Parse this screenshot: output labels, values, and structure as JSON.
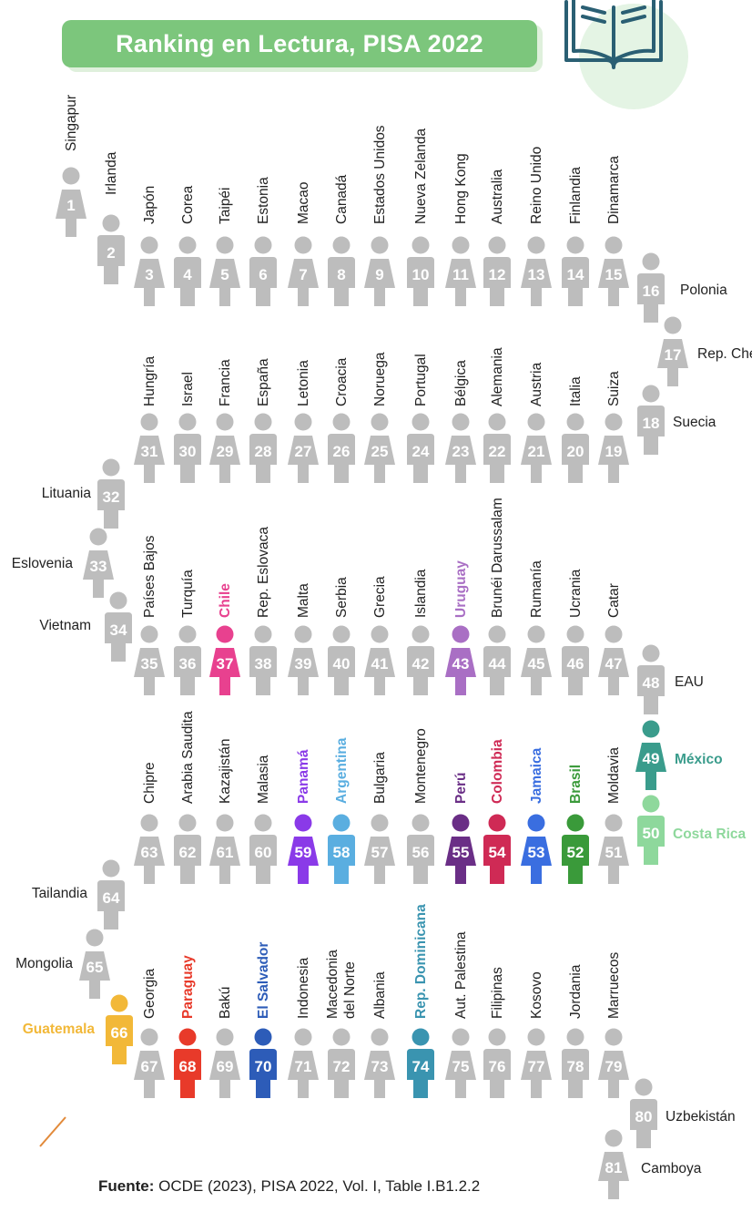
{
  "title": "Ranking en Lectura, PISA 2022",
  "source": {
    "label": "Fuente:",
    "text": " OCDE (2023), PISA 2022, Vol. I, Table I.B1.2.2"
  },
  "colors": {
    "default": "#bdbdbd",
    "title_bg": "#7cc67c",
    "book": "#2a5f73"
  },
  "chart_data": {
    "type": "table",
    "title": "Ranking en Lectura, PISA 2022",
    "ranking": [
      {
        "rank": 1,
        "country": "Singapur"
      },
      {
        "rank": 2,
        "country": "Irlanda"
      },
      {
        "rank": 3,
        "country": "Japón"
      },
      {
        "rank": 4,
        "country": "Corea"
      },
      {
        "rank": 5,
        "country": "Taipéi"
      },
      {
        "rank": 6,
        "country": "Estonia"
      },
      {
        "rank": 7,
        "country": "Macao"
      },
      {
        "rank": 8,
        "country": "Canadá"
      },
      {
        "rank": 9,
        "country": "Estados Unidos"
      },
      {
        "rank": 10,
        "country": "Nueva Zelanda"
      },
      {
        "rank": 11,
        "country": "Hong Kong"
      },
      {
        "rank": 12,
        "country": "Australia"
      },
      {
        "rank": 13,
        "country": "Reino Unido"
      },
      {
        "rank": 14,
        "country": "Finlandia"
      },
      {
        "rank": 15,
        "country": "Dinamarca"
      },
      {
        "rank": 16,
        "country": "Polonia"
      },
      {
        "rank": 17,
        "country": "Rep. Checa"
      },
      {
        "rank": 18,
        "country": "Suecia"
      },
      {
        "rank": 19,
        "country": "Suiza"
      },
      {
        "rank": 20,
        "country": "Italia"
      },
      {
        "rank": 21,
        "country": "Austria"
      },
      {
        "rank": 22,
        "country": "Alemania"
      },
      {
        "rank": 23,
        "country": "Bélgica"
      },
      {
        "rank": 24,
        "country": "Portugal"
      },
      {
        "rank": 25,
        "country": "Noruega"
      },
      {
        "rank": 26,
        "country": "Croacia"
      },
      {
        "rank": 27,
        "country": "Letonia"
      },
      {
        "rank": 28,
        "country": "España"
      },
      {
        "rank": 29,
        "country": "Francia"
      },
      {
        "rank": 30,
        "country": "Israel"
      },
      {
        "rank": 31,
        "country": "Hungría"
      },
      {
        "rank": 32,
        "country": "Lituania"
      },
      {
        "rank": 33,
        "country": "Eslovenia"
      },
      {
        "rank": 34,
        "country": "Vietnam"
      },
      {
        "rank": 35,
        "country": "Países Bajos"
      },
      {
        "rank": 36,
        "country": "Turquía"
      },
      {
        "rank": 37,
        "country": "Chile",
        "color": "#e8418f"
      },
      {
        "rank": 38,
        "country": "Rep. Eslovaca"
      },
      {
        "rank": 39,
        "country": "Malta"
      },
      {
        "rank": 40,
        "country": "Serbia"
      },
      {
        "rank": 41,
        "country": "Grecia"
      },
      {
        "rank": 42,
        "country": "Islandia"
      },
      {
        "rank": 43,
        "country": "Uruguay",
        "color": "#a96fc4"
      },
      {
        "rank": 44,
        "country": "Brunéi Darussalam"
      },
      {
        "rank": 45,
        "country": "Rumanía"
      },
      {
        "rank": 46,
        "country": "Ucrania"
      },
      {
        "rank": 47,
        "country": "Catar"
      },
      {
        "rank": 48,
        "country": "EAU"
      },
      {
        "rank": 49,
        "country": "México",
        "color": "#3a9c8c"
      },
      {
        "rank": 50,
        "country": "Costa Rica",
        "color": "#8ed89c"
      },
      {
        "rank": 51,
        "country": "Moldavia"
      },
      {
        "rank": 52,
        "country": "Brasil",
        "color": "#3a9a3a"
      },
      {
        "rank": 53,
        "country": "Jamaica",
        "color": "#3a6ee0"
      },
      {
        "rank": 54,
        "country": "Colombia",
        "color": "#cf2a55"
      },
      {
        "rank": 55,
        "country": "Perú",
        "color": "#6a2e86"
      },
      {
        "rank": 56,
        "country": "Montenegro"
      },
      {
        "rank": 57,
        "country": "Bulgaria"
      },
      {
        "rank": 58,
        "country": "Argentina",
        "color": "#5aaee0"
      },
      {
        "rank": 59,
        "country": "Panamá",
        "color": "#8a3ae8"
      },
      {
        "rank": 60,
        "country": "Malasia"
      },
      {
        "rank": 61,
        "country": "Kazajistán"
      },
      {
        "rank": 62,
        "country": "Arabia Saudita"
      },
      {
        "rank": 63,
        "country": "Chipre"
      },
      {
        "rank": 64,
        "country": "Tailandia"
      },
      {
        "rank": 65,
        "country": "Mongolia"
      },
      {
        "rank": 66,
        "country": "Guatemala",
        "color": "#f2b838"
      },
      {
        "rank": 67,
        "country": "Georgia"
      },
      {
        "rank": 68,
        "country": "Paraguay",
        "color": "#e83a2a"
      },
      {
        "rank": 69,
        "country": "Bakú"
      },
      {
        "rank": 70,
        "country": "El Salvador",
        "color": "#2d5cb8"
      },
      {
        "rank": 71,
        "country": "Indonesia"
      },
      {
        "rank": 72,
        "country": "Macedonia del Norte"
      },
      {
        "rank": 73,
        "country": "Albania"
      },
      {
        "rank": 74,
        "country": "Rep. Dominicana",
        "color": "#3a94b0"
      },
      {
        "rank": 75,
        "country": "Aut. Palestina"
      },
      {
        "rank": 76,
        "country": "Filipinas"
      },
      {
        "rank": 77,
        "country": "Kosovo"
      },
      {
        "rank": 78,
        "country": "Jordania"
      },
      {
        "rank": 79,
        "country": "Marruecos"
      },
      {
        "rank": 80,
        "country": "Uzbekistán"
      },
      {
        "rank": 81,
        "country": "Camboya"
      }
    ]
  }
}
